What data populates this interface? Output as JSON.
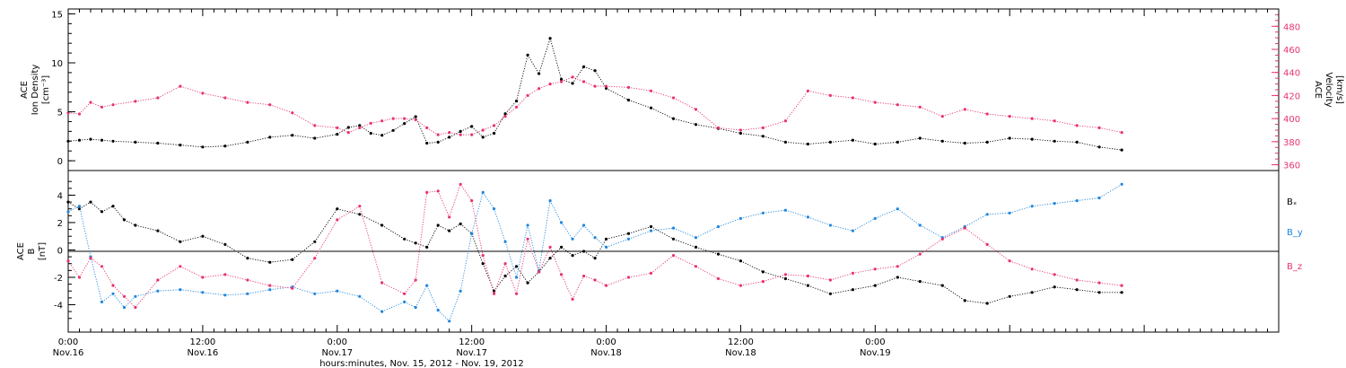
{
  "chart_data": [
    {
      "type": "scatter",
      "panel": "plasma",
      "ylabel_left": [
        "ACE",
        "Ion Density",
        "[cm⁻³]"
      ],
      "ylabel_right": [
        "ACE",
        "Velocity",
        "[km/s]"
      ],
      "ylim_left": [
        -1,
        15.5
      ],
      "ylim_right": [
        355,
        495
      ],
      "yticks_left": [
        "0",
        "5",
        "10",
        "15"
      ],
      "yticks_right": [
        "360",
        "380",
        "400",
        "420",
        "440",
        "460",
        "480"
      ],
      "series": [
        {
          "name": "Ion Density",
          "color": "#000000",
          "axis": "left",
          "x": [
            0,
            1,
            2,
            3,
            4,
            6,
            8,
            10,
            12,
            14,
            16,
            18,
            20,
            22,
            24,
            25,
            26,
            27,
            28,
            29,
            30,
            31,
            32,
            33,
            34,
            35,
            36,
            37,
            38,
            39,
            40,
            41,
            42,
            43,
            44,
            45,
            46,
            47,
            48,
            50,
            52,
            54,
            56,
            58,
            60,
            62,
            64,
            66,
            68,
            70,
            72,
            74,
            76,
            78,
            80,
            82,
            84,
            86,
            88,
            90,
            92,
            94
          ],
          "y": [
            2.0,
            2.1,
            2.2,
            2.1,
            2.0,
            1.9,
            1.8,
            1.6,
            1.4,
            1.5,
            1.9,
            2.4,
            2.6,
            2.3,
            2.7,
            3.4,
            3.6,
            2.8,
            2.6,
            3.1,
            3.8,
            4.5,
            1.8,
            1.9,
            2.4,
            3.0,
            3.5,
            2.4,
            2.8,
            4.8,
            6.1,
            10.8,
            8.9,
            12.5,
            8.3,
            7.9,
            9.6,
            9.2,
            7.4,
            6.2,
            5.4,
            4.3,
            3.7,
            3.3,
            2.8,
            2.5,
            1.9,
            1.7,
            1.9,
            2.1,
            1.7,
            1.9,
            2.3,
            2.0,
            1.8,
            1.9,
            2.3,
            2.2,
            2.0,
            1.9,
            1.4,
            1.1
          ]
        },
        {
          "name": "Velocity",
          "color": "#e8336e",
          "axis": "right",
          "x": [
            0,
            1,
            2,
            3,
            4,
            6,
            8,
            10,
            12,
            14,
            16,
            18,
            20,
            22,
            24,
            25,
            26,
            27,
            28,
            29,
            30,
            31,
            32,
            33,
            34,
            35,
            36,
            37,
            38,
            39,
            40,
            41,
            42,
            43,
            44,
            45,
            46,
            47,
            48,
            50,
            52,
            54,
            56,
            58,
            60,
            62,
            64,
            66,
            68,
            70,
            72,
            74,
            76,
            78,
            80,
            82,
            84,
            86,
            88,
            90,
            92,
            94
          ],
          "y": [
            405,
            404,
            414,
            410,
            412,
            415,
            418,
            428,
            422,
            418,
            414,
            412,
            405,
            394,
            392,
            388,
            392,
            396,
            398,
            400,
            400,
            399,
            392,
            386,
            388,
            386,
            386,
            390,
            394,
            402,
            410,
            420,
            426,
            430,
            432,
            436,
            432,
            428,
            428,
            427,
            424,
            418,
            408,
            392,
            390,
            392,
            398,
            424,
            420,
            418,
            414,
            412,
            410,
            402,
            408,
            404,
            402,
            400,
            398,
            394,
            392,
            388
          ]
        }
      ]
    },
    {
      "type": "scatter",
      "panel": "magnetic-field",
      "ylabel": [
        "ACE",
        "B",
        "[nT]"
      ],
      "ylim": [
        -6,
        5.8
      ],
      "yticks": [
        "-4",
        "-2",
        "0",
        "2",
        "4"
      ],
      "legend": "right",
      "series": [
        {
          "name": "Bₓ",
          "color": "#000000",
          "x": [
            0,
            1,
            2,
            3,
            4,
            5,
            6,
            8,
            10,
            12,
            14,
            16,
            18,
            20,
            22,
            24,
            26,
            28,
            30,
            31,
            32,
            33,
            34,
            35,
            36,
            37,
            38,
            39,
            40,
            41,
            42,
            43,
            44,
            45,
            46,
            47,
            48,
            50,
            52,
            54,
            56,
            58,
            60,
            62,
            64,
            66,
            68,
            70,
            72,
            74,
            76,
            78,
            80,
            82,
            84,
            86,
            88,
            90,
            92,
            94
          ],
          "y": [
            3.5,
            3.0,
            3.5,
            2.8,
            3.2,
            2.2,
            1.8,
            1.4,
            0.6,
            1.0,
            0.4,
            -0.6,
            -0.9,
            -0.7,
            0.6,
            3.0,
            2.6,
            1.8,
            0.8,
            0.5,
            0.2,
            1.8,
            1.4,
            1.9,
            1.2,
            -1.0,
            -3.0,
            -1.9,
            -1.2,
            -2.4,
            -1.6,
            -0.6,
            0.2,
            -0.4,
            -0.1,
            -0.6,
            0.8,
            1.2,
            1.7,
            0.8,
            0.2,
            -0.3,
            -0.8,
            -1.6,
            -2.1,
            -2.6,
            -3.2,
            -2.9,
            -2.6,
            -2.0,
            -2.3,
            -2.6,
            -3.7,
            -3.9,
            -3.4,
            -3.1,
            -2.7,
            -2.9,
            -3.1,
            -3.1
          ]
        },
        {
          "name": "B_y",
          "color": "#1f86dd",
          "x": [
            0,
            1,
            2,
            3,
            4,
            5,
            6,
            8,
            10,
            12,
            14,
            16,
            18,
            20,
            22,
            24,
            26,
            28,
            30,
            31,
            32,
            33,
            34,
            35,
            36,
            37,
            38,
            39,
            40,
            41,
            42,
            43,
            44,
            45,
            46,
            47,
            48,
            50,
            52,
            54,
            56,
            58,
            60,
            62,
            64,
            66,
            68,
            70,
            72,
            74,
            76,
            78,
            80,
            82,
            84,
            86,
            88,
            90,
            92,
            94
          ],
          "y": [
            2.8,
            3.2,
            -0.5,
            -3.8,
            -3.2,
            -4.2,
            -3.4,
            -3.0,
            -2.9,
            -3.1,
            -3.3,
            -3.2,
            -2.9,
            -2.7,
            -3.2,
            -3.0,
            -3.4,
            -4.5,
            -3.8,
            -4.2,
            -2.6,
            -4.4,
            -5.2,
            -3.0,
            1.2,
            4.2,
            3.0,
            0.6,
            -2.0,
            1.8,
            -1.5,
            3.6,
            2.0,
            0.8,
            1.8,
            0.9,
            0.2,
            0.8,
            1.4,
            1.6,
            0.9,
            1.7,
            2.3,
            2.7,
            2.9,
            2.4,
            1.8,
            1.4,
            2.3,
            3.0,
            1.8,
            0.9,
            1.7,
            2.6,
            2.7,
            3.2,
            3.4,
            3.6,
            3.8,
            4.8
          ]
        },
        {
          "name": "B_z",
          "color": "#e8336e",
          "x": [
            0,
            1,
            2,
            3,
            4,
            5,
            6,
            8,
            10,
            12,
            14,
            16,
            18,
            20,
            22,
            24,
            26,
            28,
            30,
            31,
            32,
            33,
            34,
            35,
            36,
            37,
            38,
            39,
            40,
            41,
            42,
            43,
            44,
            45,
            46,
            47,
            48,
            50,
            52,
            54,
            56,
            58,
            60,
            62,
            64,
            66,
            68,
            70,
            72,
            74,
            76,
            78,
            80,
            82,
            84,
            86,
            88,
            90,
            92,
            94
          ],
          "y": [
            -0.8,
            -2.0,
            -0.6,
            -1.2,
            -2.6,
            -3.4,
            -4.2,
            -2.2,
            -1.2,
            -2.0,
            -1.8,
            -2.2,
            -2.6,
            -2.8,
            -0.6,
            2.2,
            3.2,
            -2.4,
            -3.2,
            -2.2,
            4.2,
            4.3,
            2.4,
            4.8,
            3.6,
            -0.4,
            -3.2,
            -1.0,
            -3.2,
            0.8,
            -1.6,
            0.2,
            -1.8,
            -3.6,
            -1.9,
            -2.2,
            -2.6,
            -2.0,
            -1.7,
            -0.4,
            -1.2,
            -2.1,
            -2.6,
            -2.3,
            -1.8,
            -1.9,
            -2.2,
            -1.7,
            -1.4,
            -1.2,
            -0.3,
            0.8,
            1.6,
            0.4,
            -0.8,
            -1.4,
            -1.8,
            -2.2,
            -2.4,
            -2.6
          ]
        }
      ]
    }
  ],
  "x_axis": {
    "range": [
      0,
      108
    ],
    "tick_labels": [
      {
        "x": 0,
        "time": "0:00",
        "date": "Nov.16"
      },
      {
        "x": 12,
        "time": "12:00",
        "date": "Nov.16"
      },
      {
        "x": 24,
        "time": "0:00",
        "date": "Nov.17"
      },
      {
        "x": 36,
        "time": "12:00",
        "date": "Nov.17"
      },
      {
        "x": 48,
        "time": "0:00",
        "date": "Nov.18"
      },
      {
        "x": 60,
        "time": "12:00",
        "date": "Nov.18"
      },
      {
        "x": 72,
        "time": "0:00",
        "date": "Nov.19"
      }
    ],
    "title": "hours:minutes, Nov. 15, 2012 - Nov. 19, 2012"
  },
  "legend_labels": [
    "Bₓ",
    "B_y",
    "B_z"
  ]
}
